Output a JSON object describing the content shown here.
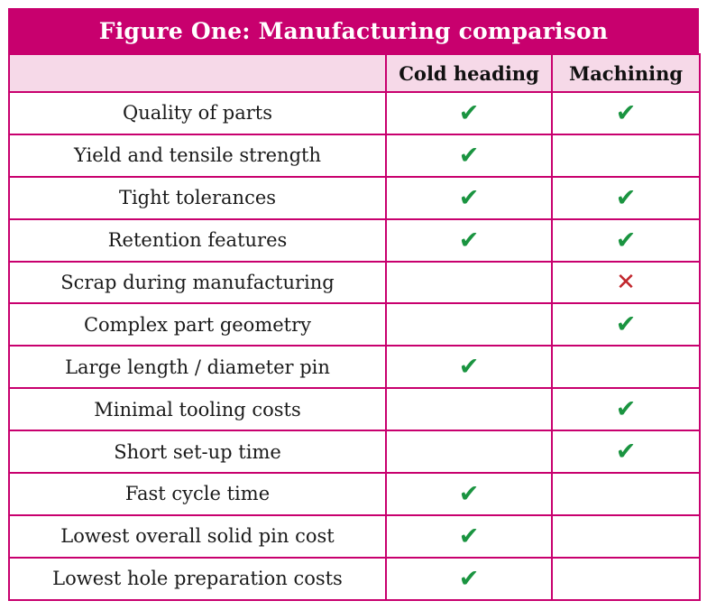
{
  "title": "Figure One: Manufacturing comparison",
  "colors": {
    "accent": "#c8006e",
    "header_fill": "#f6d9e8",
    "check": "#1a9440",
    "cross": "#c1272d"
  },
  "columns": [
    "",
    "Cold heading",
    "Machining"
  ],
  "rows": [
    {
      "feature": "Quality of parts",
      "cold_heading": "check",
      "machining": "check"
    },
    {
      "feature": "Yield and tensile strength",
      "cold_heading": "check",
      "machining": ""
    },
    {
      "feature": "Tight tolerances",
      "cold_heading": "check",
      "machining": "check"
    },
    {
      "feature": "Retention features",
      "cold_heading": "check",
      "machining": "check"
    },
    {
      "feature": "Scrap during manufacturing",
      "cold_heading": "",
      "machining": "cross"
    },
    {
      "feature": "Complex part geometry",
      "cold_heading": "",
      "machining": "check"
    },
    {
      "feature": "Large length / diameter pin",
      "cold_heading": "check",
      "machining": ""
    },
    {
      "feature": "Minimal tooling costs",
      "cold_heading": "",
      "machining": "check"
    },
    {
      "feature": "Short set-up time",
      "cold_heading": "",
      "machining": "check"
    },
    {
      "feature": "Fast cycle time",
      "cold_heading": "check",
      "machining": ""
    },
    {
      "feature": "Lowest overall solid pin cost",
      "cold_heading": "check",
      "machining": ""
    },
    {
      "feature": "Lowest hole preparation costs",
      "cold_heading": "check",
      "machining": ""
    }
  ]
}
